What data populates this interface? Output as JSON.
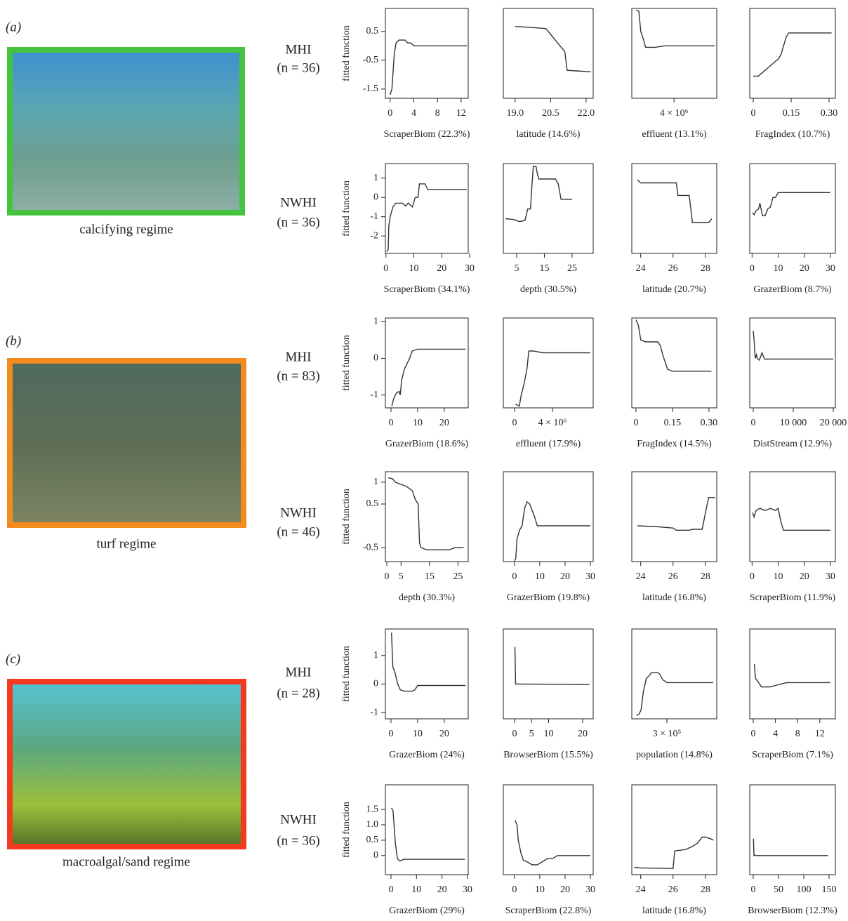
{
  "panels": [
    {
      "letter": "(a)",
      "regime": "calcifying regime",
      "rows": [
        {
          "region": "MHI",
          "n": "(n = 36)"
        },
        {
          "region": "NWHI",
          "n": "(n = 36)"
        }
      ]
    },
    {
      "letter": "(b)",
      "regime": "turf regime",
      "rows": [
        {
          "region": "MHI",
          "n": "(n = 83)"
        },
        {
          "region": "NWHI",
          "n": "(n = 46)"
        }
      ]
    },
    {
      "letter": "(c)",
      "regime": "macroalgal/sand regime",
      "rows": [
        {
          "region": "MHI",
          "n": "(n = 28)"
        },
        {
          "region": "NWHI",
          "n": "(n = 36)"
        }
      ]
    }
  ],
  "chart_data": [
    {
      "type": "line",
      "y_label": "fitted function",
      "x_label": "ScraperBiom (22.3%)",
      "xlim": [
        -0.8,
        13.2
      ],
      "xticks": [
        0,
        4,
        8,
        12
      ],
      "ylim": [
        -1.82,
        1.3
      ],
      "yticks": [
        0.5,
        -0.5,
        -1.5
      ],
      "color": "#333333",
      "x": [
        0,
        0.3,
        0.7,
        1,
        1.5,
        2.5,
        3,
        3.5,
        4,
        13
      ],
      "values": [
        -1.7,
        -1.5,
        -0.3,
        0.1,
        0.2,
        0.2,
        0.1,
        0.1,
        0,
        0
      ]
    },
    {
      "type": "line",
      "x_label": "latitude (14.6%)",
      "xlim": [
        18.5,
        22.3
      ],
      "xticks": [
        {
          "value": 19,
          "label": "19.0"
        },
        20.5,
        {
          "value": 22,
          "label": "22.0"
        }
      ],
      "ylim": [
        -1.82,
        1.3
      ],
      "color": "#333333",
      "x": [
        19,
        19.5,
        20,
        20.3,
        20.6,
        20.9,
        21.1,
        21.2,
        21.6,
        22.2
      ],
      "values": [
        0.67,
        0.65,
        0.62,
        0.6,
        0.3,
        0,
        -0.2,
        -0.85,
        -0.87,
        -0.9
      ]
    },
    {
      "type": "line",
      "x_label": "effluent (13.1%)",
      "xlim": [
        -450000,
        8500000
      ],
      "xticks": [
        {
          "value": 4000000,
          "label": "4 × 10⁶"
        }
      ],
      "ylim": [
        -1.82,
        1.3
      ],
      "color": "#333333",
      "x": [
        0,
        300000,
        500000,
        800000,
        1000000,
        2000000,
        3000000,
        8300000
      ],
      "values": [
        1.24,
        1.2,
        0.5,
        0.2,
        -0.05,
        -0.05,
        0,
        0
      ]
    },
    {
      "type": "line",
      "x_label": "FragIndex (10.7%)",
      "xlim": [
        -0.014,
        0.325
      ],
      "xticks": [
        0,
        0.15,
        {
          "value": 0.3,
          "label": "0.30"
        }
      ],
      "ylim": [
        -1.82,
        1.3
      ],
      "color": "#333333",
      "x": [
        0,
        0.02,
        0.04,
        0.06,
        0.08,
        0.1,
        0.11,
        0.12,
        0.13,
        0.14,
        0.31
      ],
      "values": [
        -1.05,
        -1.05,
        -0.9,
        -0.75,
        -0.6,
        -0.45,
        -0.3,
        0,
        0.3,
        0.45,
        0.45
      ]
    },
    {
      "type": "line",
      "y_label": "fitted function",
      "x_label": "ScraperBiom (34.1%)",
      "xlim": [
        -0.2,
        29.5
      ],
      "xticks": [
        0,
        10,
        20,
        30
      ],
      "ylim": [
        -2.9,
        1.75
      ],
      "yticks": [
        1,
        0,
        -1,
        -2
      ],
      "color": "#333333",
      "x": [
        0.2,
        0.8,
        1,
        1.5,
        2.5,
        3.5,
        6,
        7,
        8,
        9.5,
        10.5,
        11.5,
        12,
        14,
        15,
        29
      ],
      "values": [
        -2.8,
        -2.7,
        -1.5,
        -1,
        -0.5,
        -0.3,
        -0.3,
        -0.45,
        -0.3,
        -0.5,
        0,
        0,
        0.7,
        0.7,
        0.4,
        0.4
      ]
    },
    {
      "type": "line",
      "x_label": "depth (30.5%)",
      "xlim": [
        0.2,
        32.6
      ],
      "xticks": [
        5,
        15,
        25
      ],
      "ylim": [
        -2.9,
        1.75
      ],
      "color": "#333333",
      "x": [
        1,
        4,
        6,
        8,
        9,
        10,
        10.5,
        11,
        12,
        12.5,
        13,
        19,
        20,
        21,
        25
      ],
      "values": [
        -1.1,
        -1.15,
        -1.25,
        -1.2,
        -0.6,
        -0.6,
        0.6,
        1.6,
        1.6,
        1.2,
        0.95,
        0.95,
        0.7,
        -0.1,
        -0.1
      ]
    },
    {
      "type": "line",
      "x_label": "latitude (20.7%)",
      "xlim": [
        23.45,
        28.7
      ],
      "xticks": [
        24,
        26,
        28
      ],
      "ylim": [
        -2.9,
        1.75
      ],
      "color": "#333333",
      "x": [
        23.8,
        24,
        26.2,
        26.3,
        27,
        27.2,
        28.2,
        28.4
      ],
      "values": [
        0.9,
        0.75,
        0.75,
        0.1,
        0.1,
        -1.3,
        -1.3,
        -1.1
      ]
    },
    {
      "type": "line",
      "x_label": "GrazerBiom (8.7%)",
      "xlim": [
        -0.9,
        31.9
      ],
      "xticks": [
        0,
        10,
        20,
        30
      ],
      "ylim": [
        -2.9,
        1.75
      ],
      "color": "#333333",
      "x": [
        0.2,
        0.8,
        1.5,
        2.5,
        3,
        4,
        5,
        6,
        7,
        8,
        9,
        10,
        30
      ],
      "values": [
        -0.8,
        -0.9,
        -0.7,
        -0.6,
        -0.3,
        -0.95,
        -0.95,
        -0.6,
        -0.5,
        0,
        0,
        0.25,
        0.25
      ]
    },
    {
      "type": "line",
      "y_label": "fitted function",
      "x_label": "GrazerBiom (18.6%)",
      "xlim": [
        -2.1,
        29
      ],
      "xticks": [
        0,
        10,
        20
      ],
      "ylim": [
        -1.35,
        1.1
      ],
      "yticks": [
        1,
        0,
        -1
      ],
      "color": "#333333",
      "x": [
        0.3,
        1,
        2,
        3,
        3.5,
        4,
        5,
        6,
        7,
        8,
        10,
        28
      ],
      "values": [
        -1.3,
        -1.1,
        -0.95,
        -0.9,
        -1,
        -0.6,
        -0.3,
        -0.15,
        0,
        0.2,
        0.25,
        0.25
      ]
    },
    {
      "type": "line",
      "x_label": "effluent (17.9%)",
      "xlim": [
        -1190000,
        8300000
      ],
      "xticks": [
        0,
        {
          "value": 4000000,
          "label": "4 × 10⁶"
        }
      ],
      "ylim": [
        -1.35,
        1.1
      ],
      "color": "#333333",
      "x": [
        100000,
        500000,
        700000,
        1000000,
        1300000,
        1500000,
        2000000,
        3000000,
        8000000
      ],
      "values": [
        -1.25,
        -1.3,
        -1,
        -0.7,
        -0.3,
        0.2,
        0.2,
        0.15,
        0.15
      ]
    },
    {
      "type": "line",
      "x_label": "FragIndex (14.5%)",
      "xlim": [
        -0.017,
        0.332
      ],
      "xticks": [
        0,
        0.15,
        {
          "value": 0.3,
          "label": "0.30"
        }
      ],
      "ylim": [
        -1.35,
        1.1
      ],
      "color": "#333333",
      "x": [
        0,
        0.01,
        0.02,
        0.04,
        0.09,
        0.1,
        0.11,
        0.12,
        0.13,
        0.15,
        0.31
      ],
      "values": [
        1.05,
        0.9,
        0.5,
        0.45,
        0.45,
        0.35,
        0.1,
        -0.1,
        -0.3,
        -0.35,
        -0.35
      ]
    },
    {
      "type": "line",
      "x_label": "DistStream (12.9%)",
      "xlim": [
        -880,
        20530
      ],
      "xticks": [
        0,
        {
          "value": 10000,
          "label": "10 000"
        },
        {
          "value": 20000,
          "label": "20 000"
        }
      ],
      "ylim": [
        -1.35,
        1.1
      ],
      "color": "#333333",
      "x": [
        0,
        200,
        500,
        800,
        1000,
        1500,
        2200,
        2800,
        20000
      ],
      "values": [
        0.75,
        0.5,
        0,
        0.1,
        0,
        -0.05,
        0.15,
        -0.02,
        -0.02
      ]
    },
    {
      "type": "line",
      "y_label": "fitted function",
      "x_label": "depth (30.3%)",
      "xlim": [
        -0.5,
        28.6
      ],
      "xticks": [
        0,
        5,
        15,
        25
      ],
      "ylim": [
        -0.82,
        1.24
      ],
      "yticks": [
        1,
        0.5,
        -0.5
      ],
      "color": "#333333",
      "x": [
        0.5,
        2,
        3,
        5,
        7,
        9,
        10,
        11,
        11.5,
        12,
        14,
        22,
        24,
        27
      ],
      "values": [
        1.1,
        1.08,
        1,
        0.95,
        0.9,
        0.8,
        0.6,
        0.5,
        -0.4,
        -0.5,
        -0.55,
        -0.55,
        -0.5,
        -0.5
      ]
    },
    {
      "type": "line",
      "x_label": "GrazerBiom (19.8%)",
      "xlim": [
        -4.4,
        31.1
      ],
      "xticks": [
        0,
        10,
        20,
        30
      ],
      "ylim": [
        -0.82,
        1.24
      ],
      "color": "#333333",
      "x": [
        0,
        0.5,
        1,
        2,
        3,
        4,
        5,
        6,
        7,
        8,
        9,
        30
      ],
      "values": [
        -0.8,
        -0.75,
        -0.3,
        -0.1,
        0,
        0.4,
        0.55,
        0.5,
        0.35,
        0.2,
        0,
        0
      ]
    },
    {
      "type": "line",
      "x_label": "latitude (16.8%)",
      "xlim": [
        23.45,
        28.7
      ],
      "xticks": [
        24,
        26,
        28
      ],
      "ylim": [
        -0.82,
        1.24
      ],
      "color": "#333333",
      "x": [
        23.8,
        25,
        26,
        26.2,
        27,
        27.2,
        27.8,
        28,
        28.2,
        28.6
      ],
      "values": [
        0,
        -0.02,
        -0.05,
        -0.1,
        -0.1,
        -0.08,
        -0.08,
        0.3,
        0.65,
        0.65
      ]
    },
    {
      "type": "line",
      "x_label": "ScraperBiom (11.9%)",
      "xlim": [
        -0.9,
        31.9
      ],
      "xticks": [
        0,
        10,
        20,
        30
      ],
      "ylim": [
        -0.82,
        1.24
      ],
      "color": "#333333",
      "x": [
        0.2,
        0.8,
        1.5,
        3,
        5,
        7,
        9,
        10,
        11,
        12,
        30
      ],
      "values": [
        0.3,
        0.2,
        0.35,
        0.4,
        0.35,
        0.4,
        0.35,
        0.4,
        0.1,
        -0.1,
        -0.1
      ]
    },
    {
      "type": "line",
      "y_label": "fitted function",
      "x_label": "GrazerBiom (24%)",
      "xlim": [
        -2.1,
        29
      ],
      "xticks": [
        0,
        10,
        20
      ],
      "ylim": [
        -1.22,
        1.93
      ],
      "yticks": [
        1,
        0,
        -1
      ],
      "color": "#333333",
      "x": [
        0.2,
        0.7,
        1.5,
        2.5,
        3.5,
        5,
        8,
        9,
        10,
        28
      ],
      "values": [
        1.8,
        0.6,
        0.4,
        0,
        -0.2,
        -0.25,
        -0.25,
        -0.2,
        -0.05,
        -0.05
      ]
    },
    {
      "type": "line",
      "x_label": "BrowserBiom (15.5%)",
      "xlim": [
        -3.3,
        23.1
      ],
      "xticks": [
        0,
        5,
        10,
        20
      ],
      "ylim": [
        -1.22,
        1.93
      ],
      "color": "#333333",
      "x": [
        0.1,
        0.3,
        1,
        22
      ],
      "values": [
        1.3,
        0,
        0,
        -0.02
      ]
    },
    {
      "type": "line",
      "x_label": "population (14.8%)",
      "xlim": [
        -41000,
        784000
      ],
      "xticks": [
        {
          "value": 300000,
          "label": "3 × 10⁵"
        }
      ],
      "ylim": [
        -1.22,
        1.93
      ],
      "color": "#333333",
      "x": [
        5000,
        30000,
        50000,
        70000,
        100000,
        130000,
        150000,
        210000,
        230000,
        260000,
        300000,
        750000
      ],
      "values": [
        -1.1,
        -1.05,
        -0.9,
        -0.3,
        0.2,
        0.3,
        0.4,
        0.4,
        0.35,
        0.15,
        0.05,
        0.05
      ]
    },
    {
      "type": "line",
      "x_label": "ScraperBiom (7.1%)",
      "xlim": [
        -0.63,
        14.8
      ],
      "xticks": [
        0,
        4,
        8,
        12
      ],
      "ylim": [
        -1.22,
        1.93
      ],
      "color": "#333333",
      "x": [
        0.2,
        0.4,
        0.8,
        1.5,
        3,
        4,
        6,
        8,
        13.9
      ],
      "values": [
        0.7,
        0.2,
        0.1,
        -0.1,
        -0.1,
        -0.05,
        0.05,
        0.05,
        0.05
      ]
    },
    {
      "type": "line",
      "y_label": "fitted function",
      "x_label": "GrazerBiom (29%)",
      "xlim": [
        -2.2,
        30.3
      ],
      "xticks": [
        0,
        10,
        20,
        30
      ],
      "ylim": [
        -0.62,
        2.3
      ],
      "yticks": [
        1.5,
        {
          "value": 1,
          "label": "1.0"
        },
        0.5,
        0
      ],
      "color": "#333333",
      "x": [
        0.2,
        0.8,
        1.2,
        1.7,
        2.5,
        3.5,
        5,
        29
      ],
      "values": [
        1.55,
        1.45,
        1,
        0.4,
        -0.1,
        -0.18,
        -0.12,
        -0.12
      ]
    },
    {
      "type": "line",
      "x_label": "ScraperBiom (22.8%)",
      "xlim": [
        -4.4,
        31.1
      ],
      "xticks": [
        0,
        10,
        20,
        30
      ],
      "ylim": [
        -0.62,
        2.3
      ],
      "color": "#333333",
      "x": [
        0.2,
        1,
        1.5,
        2.5,
        3.5,
        5,
        7,
        9,
        11,
        13,
        15,
        17,
        30
      ],
      "values": [
        1.15,
        1,
        0.5,
        0.1,
        -0.15,
        -0.2,
        -0.3,
        -0.3,
        -0.2,
        -0.1,
        -0.1,
        0,
        0
      ]
    },
    {
      "type": "line",
      "x_label": "latitude (16.8%)",
      "xlim": [
        23.45,
        28.7
      ],
      "xticks": [
        24,
        26,
        28
      ],
      "ylim": [
        -0.62,
        2.3
      ],
      "color": "#333333",
      "x": [
        23.6,
        24,
        26,
        26.1,
        26.8,
        27,
        27.2,
        27.5,
        27.8,
        28,
        28.3,
        28.5
      ],
      "values": [
        -0.38,
        -0.4,
        -0.42,
        0.15,
        0.2,
        0.25,
        0.3,
        0.4,
        0.6,
        0.6,
        0.55,
        0.5
      ]
    },
    {
      "type": "line",
      "x_label": "BrowserBiom (12.3%)",
      "xlim": [
        -6.9,
        162.5
      ],
      "xticks": [
        0,
        50,
        100,
        150
      ],
      "ylim": [
        -0.62,
        2.3
      ],
      "color": "#333333",
      "x": [
        0.5,
        1.5,
        3,
        5,
        148
      ],
      "values": [
        0.55,
        0,
        0.02,
        0,
        0
      ]
    }
  ]
}
